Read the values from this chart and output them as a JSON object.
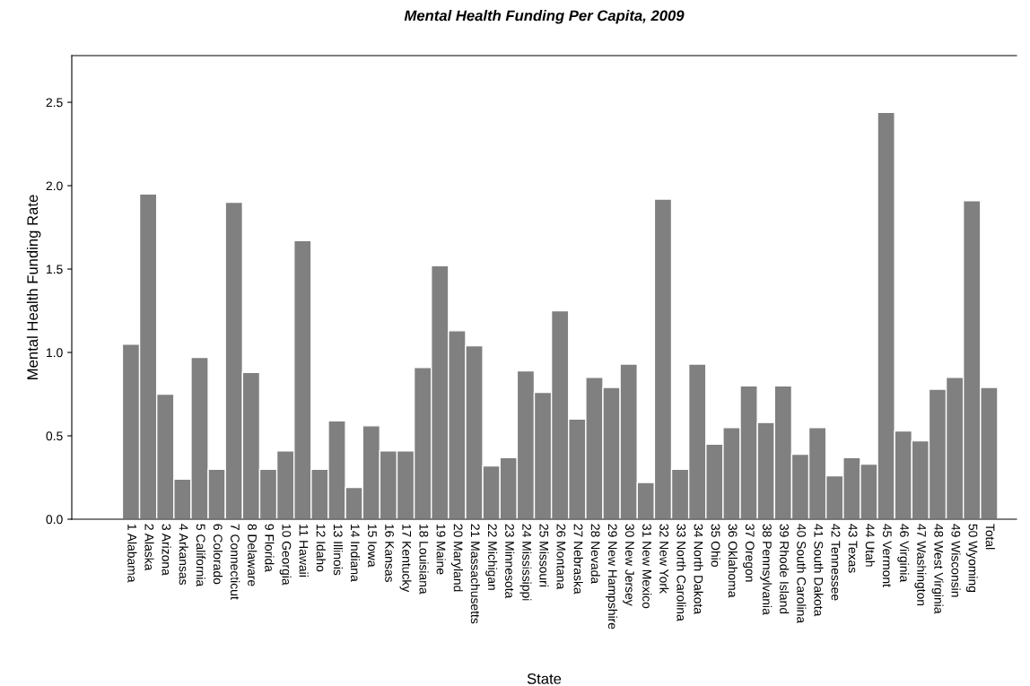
{
  "chart_data": {
    "type": "bar",
    "title": "Mental Health Funding Per Capita, 2009",
    "xlabel": "State",
    "ylabel": "Mental Health Funding Rate",
    "categories": [
      "1 Alabama",
      "2 Alaska",
      "3 Arizona",
      "4 Arkansas",
      "5 California",
      "6 Colorado",
      "7 Connecticut",
      "8 Delaware",
      "9 Florida",
      "10 Georgia",
      "11 Hawaii",
      "12 Idaho",
      "13 Illinois",
      "14 Indiana",
      "15 Iowa",
      "16 Kansas",
      "17 Kentucky",
      "18 Louisiana",
      "19 Maine",
      "20 Maryland",
      "21 Massachusetts",
      "22 Michigan",
      "23 Minnesota",
      "24 Mississippi",
      "25 Missouri",
      "26 Montana",
      "27 Nebraska",
      "28 Nevada",
      "29 New Hampshire",
      "30 New Jersey",
      "31 New Mexico",
      "32 New York",
      "33 North Carolina",
      "34 North Dakota",
      "35 Ohio",
      "36 Oklahoma",
      "37 Oregon",
      "38 Pennsylvania",
      "39 Rhode Island",
      "40 South Carolina",
      "41 South Dakota",
      "42 Tennessee",
      "43 Texas",
      "44 Utah",
      "45 Vermont",
      "46 Virginia",
      "47 Washington",
      "48 West Virginia",
      "49 Wisconsin",
      "50 Wyoming",
      "Total"
    ],
    "values": [
      1.05,
      1.95,
      0.75,
      0.24,
      0.97,
      0.3,
      1.9,
      0.88,
      0.3,
      0.41,
      1.67,
      0.3,
      0.59,
      0.19,
      0.56,
      0.41,
      0.41,
      0.91,
      1.52,
      1.13,
      1.04,
      0.32,
      0.37,
      0.89,
      0.76,
      1.25,
      0.6,
      0.85,
      0.79,
      0.93,
      0.22,
      1.92,
      0.3,
      0.93,
      0.45,
      0.55,
      0.8,
      0.58,
      0.8,
      0.39,
      0.55,
      0.26,
      0.37,
      0.33,
      2.44,
      0.53,
      0.47,
      0.78,
      0.85,
      1.91,
      0.79
    ],
    "color": "#808080",
    "ylim": [
      0,
      2.78
    ],
    "yticks": [
      {
        "value": 0,
        "label": "0.0"
      },
      {
        "value": 0.5,
        "label": "0.5"
      },
      {
        "value": 1,
        "label": "1.0"
      },
      {
        "value": 1.5,
        "label": "1.5"
      },
      {
        "value": 2,
        "label": "2.0"
      },
      {
        "value": 2.5,
        "label": "2.5"
      }
    ],
    "grid": false
  }
}
